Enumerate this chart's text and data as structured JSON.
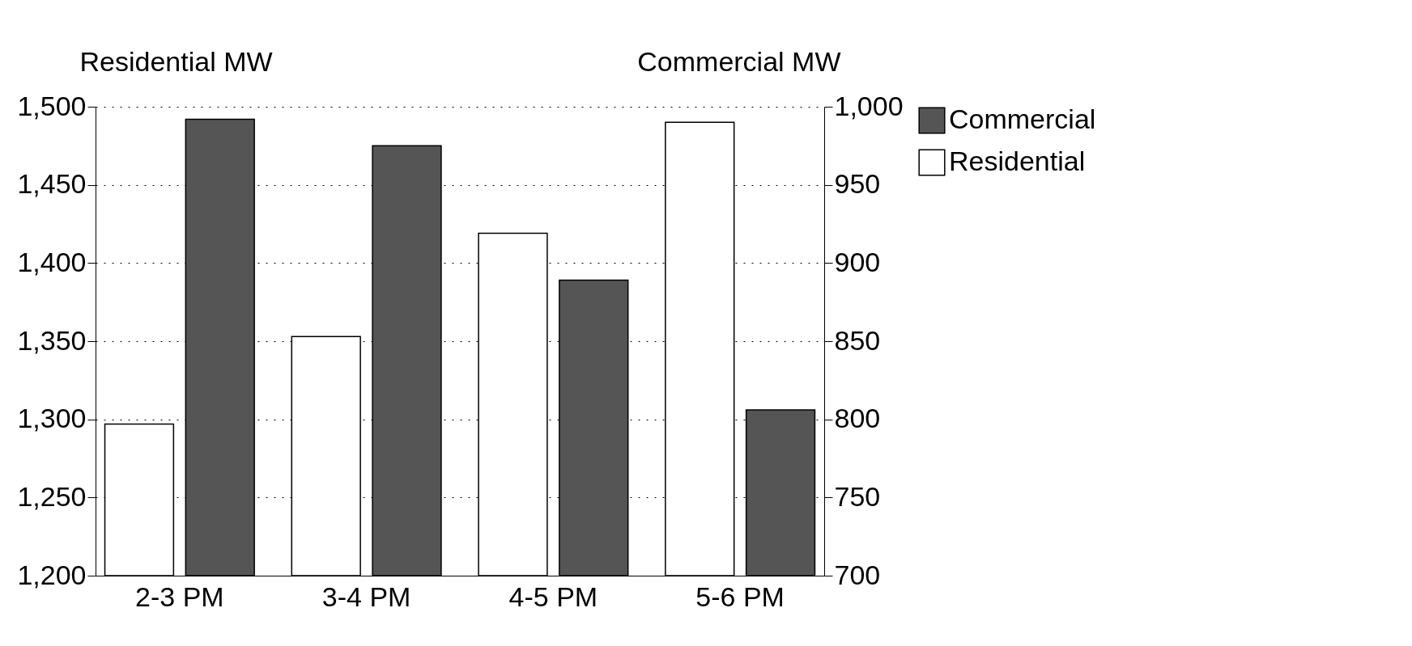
{
  "chart_data": {
    "type": "bar",
    "categories": [
      "2-3 PM",
      "3-4 PM",
      "4-5 PM",
      "5-6 PM"
    ],
    "ylabel": "Residential MW",
    "y2label": "Commercial MW",
    "series": [
      {
        "name": "Commercial",
        "color": "#555555",
        "axis": "y2",
        "values": [
          992,
          975,
          889,
          806
        ]
      },
      {
        "name": "Residential",
        "color": "#ffffff",
        "axis": "y",
        "values": [
          1297,
          1353,
          1419,
          1490
        ]
      }
    ],
    "ylim": [
      1200,
      1500
    ],
    "yticks": [
      {
        "value": 1200,
        "label": "1,200"
      },
      {
        "value": 1250,
        "label": "1,250"
      },
      {
        "value": 1300,
        "label": "1,300"
      },
      {
        "value": 1350,
        "label": "1,350"
      },
      {
        "value": 1400,
        "label": "1,400"
      },
      {
        "value": 1450,
        "label": "1,450"
      },
      {
        "value": 1500,
        "label": "1,500"
      }
    ],
    "y2lim": [
      700,
      1000
    ],
    "y2ticks": [
      700,
      750,
      800,
      850,
      900,
      950,
      {
        "value": 1000,
        "label": "1,000"
      }
    ],
    "grid": "y",
    "legend": "right"
  }
}
